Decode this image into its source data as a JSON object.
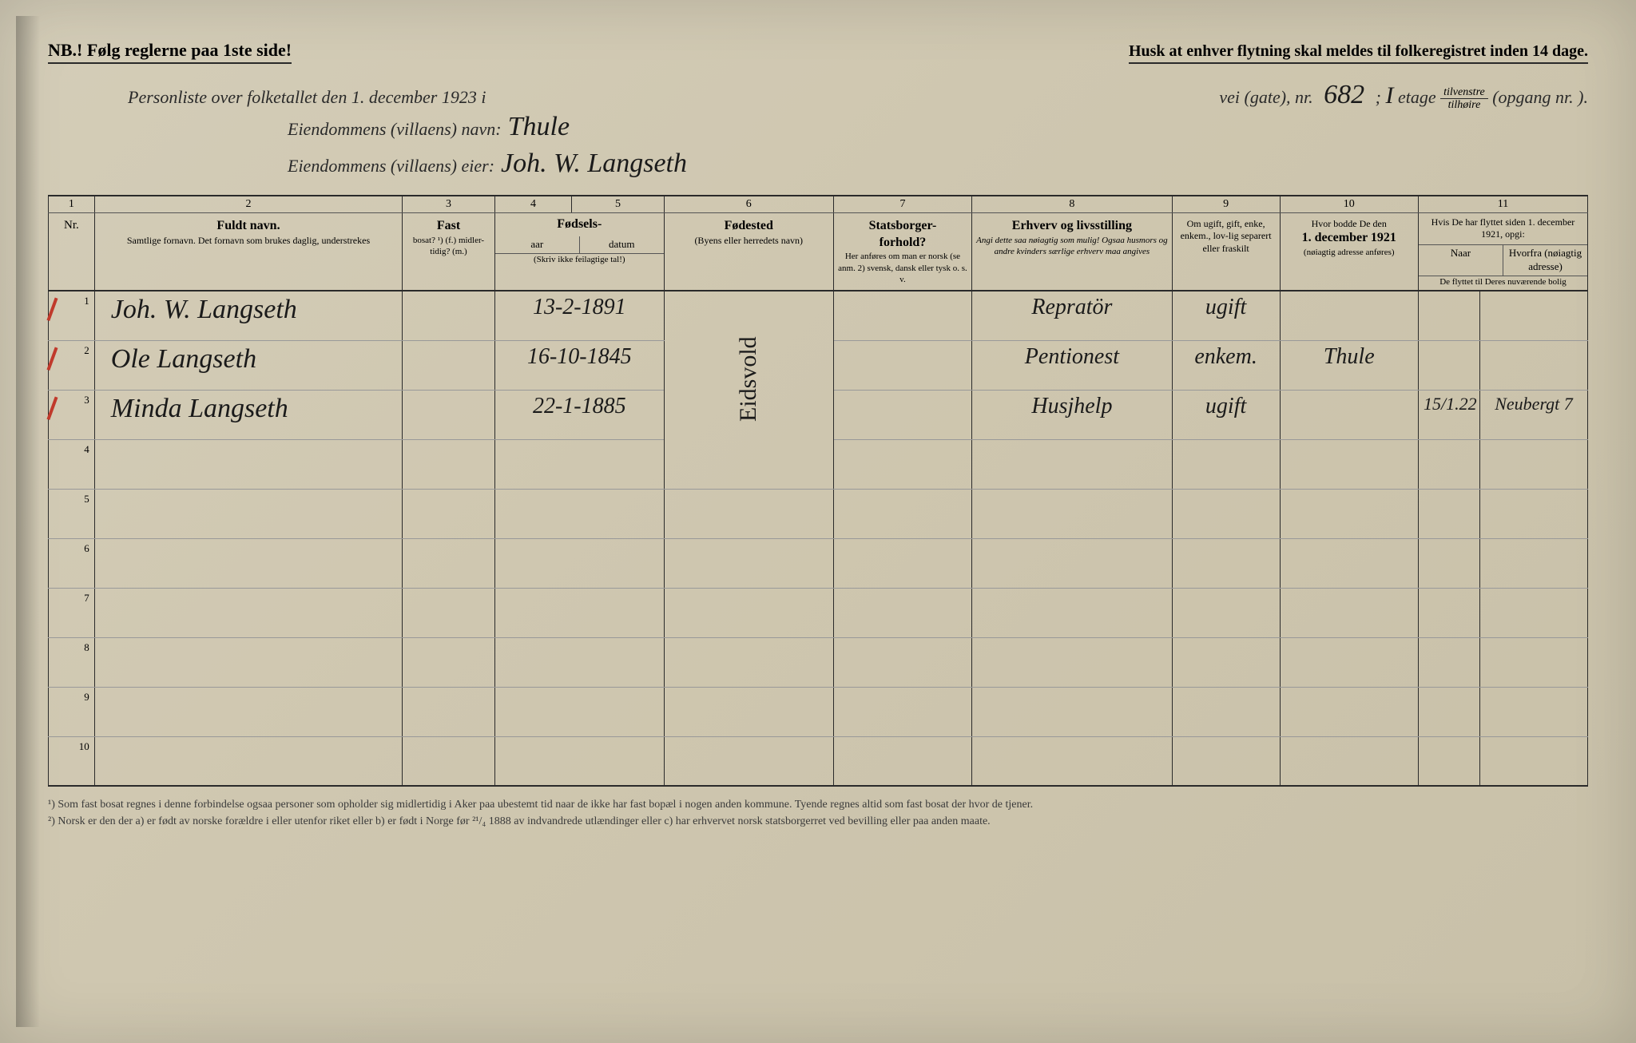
{
  "header": {
    "nb": "NB.! Følg reglerne paa 1ste side!",
    "husk": "Husk at enhver flytning skal meldes til folkeregistret inden 14 dage."
  },
  "title": {
    "personliste": "Personliste over folketallet den 1. december 1923 i",
    "vei": "vei (gate), nr.",
    "vei_nr": "682",
    "etage_hand": "I",
    "etage_label": "etage",
    "frac_top": "tilvenstre",
    "frac_bot": "tilhøire",
    "opgang": "(opgang nr.      ).",
    "eiendom_navn_label": "Eiendommens (villaens) navn:",
    "eiendom_navn": "Thule",
    "eiendom_eier_label": "Eiendommens (villaens) eier:",
    "eiendom_eier": "Joh. W. Langseth"
  },
  "columns": {
    "nums": [
      "1",
      "2",
      "3",
      "4",
      "5",
      "6",
      "7",
      "8",
      "9",
      "10",
      "11"
    ],
    "c1": "Nr.",
    "c2_bold": "Fuldt navn.",
    "c2_sub": "Samtlige fornavn.\nDet fornavn som brukes daglig, understrekes",
    "c3_bold": "Fast",
    "c3_sub": "bosat? ¹)\n(f.)\nmidler-\ntidig?\n(m.)",
    "c45_bold": "Fødsels-",
    "c4": "aar",
    "c5": "datum",
    "c45_sub": "(Skriv ikke feilagtige tal!)",
    "c6_bold": "Fødested",
    "c6_sub": "(Byens eller herredets navn)",
    "c7_bold": "Statsborger-\nforhold?",
    "c7_sub": "Her anføres om man er norsk (se anm. 2) svensk, dansk eller tysk o. s. v.",
    "c8_bold": "Erhverv og livsstilling",
    "c8_sub": "Angi dette saa nøiagtig som mulig!\nOgsaa husmors og andre kvinders særlige erhverv maa angives",
    "c9_sub": "Om ugift, gift, enke, enkem., lov-lig separert eller fraskilt",
    "c10_bold": "Hvor bodde De den",
    "c10_bold2": "1. december 1921",
    "c10_sub": "(nøiagtig adresse anføres)",
    "c11_bold": "Hvis De har flyttet siden 1. december 1921, opgi:",
    "c11a": "Naar",
    "c11b": "Hvorfra (nøiagtig adresse)",
    "c11_sub": "De flyttet til Deres nuværende bolig"
  },
  "rows": [
    {
      "n": "1",
      "red": true,
      "name": "Joh. W. Langseth",
      "dob": "13-2-1891",
      "place": "",
      "erhverv": "Repratör",
      "status": "ugift",
      "bodde": "",
      "naar": "",
      "hvorfra": ""
    },
    {
      "n": "2",
      "red": true,
      "name": "Ole Langseth",
      "dob": "16-10-1845",
      "place": "",
      "erhverv": "Pentionest",
      "status": "enkem.",
      "bodde": "Thule",
      "naar": "",
      "hvorfra": ""
    },
    {
      "n": "3",
      "red": true,
      "name": "Minda Langseth",
      "dob": "22-1-1885",
      "place": "",
      "erhverv": "Husjhelp",
      "status": "ugift",
      "bodde": "",
      "naar": "15/1.22",
      "hvorfra": "Neubergt 7"
    },
    {
      "n": "4",
      "red": false,
      "name": "",
      "dob": "",
      "place": "",
      "erhverv": "",
      "status": "",
      "bodde": "",
      "naar": "",
      "hvorfra": ""
    },
    {
      "n": "5",
      "red": false,
      "name": "",
      "dob": "",
      "place": "",
      "erhverv": "",
      "status": "",
      "bodde": "",
      "naar": "",
      "hvorfra": ""
    },
    {
      "n": "6",
      "red": false,
      "name": "",
      "dob": "",
      "place": "",
      "erhverv": "",
      "status": "",
      "bodde": "",
      "naar": "",
      "hvorfra": ""
    },
    {
      "n": "7",
      "red": false,
      "name": "",
      "dob": "",
      "place": "",
      "erhverv": "",
      "status": "",
      "bodde": "",
      "naar": "",
      "hvorfra": ""
    },
    {
      "n": "8",
      "red": false,
      "name": "",
      "dob": "",
      "place": "",
      "erhverv": "",
      "status": "",
      "bodde": "",
      "naar": "",
      "hvorfra": ""
    },
    {
      "n": "9",
      "red": false,
      "name": "",
      "dob": "",
      "place": "",
      "erhverv": "",
      "status": "",
      "bodde": "",
      "naar": "",
      "hvorfra": ""
    },
    {
      "n": "10",
      "red": false,
      "name": "",
      "dob": "",
      "place": "",
      "erhverv": "",
      "status": "",
      "bodde": "",
      "naar": "",
      "hvorfra": ""
    }
  ],
  "birthplace_vertical": "Eidsvold",
  "footnotes": {
    "f1": "¹) Som fast bosat regnes i denne forbindelse ogsaa personer som opholder sig midlertidig i Aker paa ubestemt tid naar de ikke har fast bopæl i nogen anden kommune. Tyende regnes altid som fast bosat der hvor de tjener.",
    "f2": "²) Norsk er den der a) er født av norske forældre i eller utenfor riket eller b) er født i Norge før ²¹/₄ 1888 av indvandrede utlændinger eller c) har erhvervet norsk statsborgerret ved bevilling eller paa anden maate."
  },
  "colors": {
    "paper": "#d4cdb8",
    "ink": "#2a2a2a",
    "handwriting": "#1a1a1a",
    "red_mark": "#c0392b"
  },
  "col_widths_pct": [
    3,
    20,
    6,
    5,
    6,
    11,
    9,
    13,
    7,
    9,
    4,
    7
  ]
}
